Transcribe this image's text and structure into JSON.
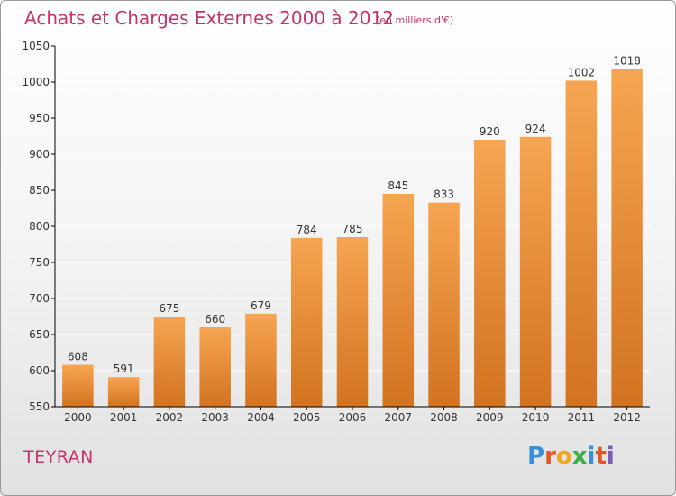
{
  "chart_data": {
    "type": "bar",
    "title": "Achats et Charges Externes 2000 à 2012",
    "subtitle": "(en milliers d'€)",
    "categories": [
      "2000",
      "2001",
      "2002",
      "2003",
      "2004",
      "2005",
      "2006",
      "2007",
      "2008",
      "2009",
      "2010",
      "2011",
      "2012"
    ],
    "values": [
      608,
      591,
      675,
      660,
      679,
      784,
      785,
      845,
      833,
      920,
      924,
      1002,
      1018
    ],
    "ylim": [
      550,
      1050
    ],
    "yticks": [
      550,
      600,
      650,
      700,
      750,
      800,
      850,
      900,
      950,
      1000,
      1050
    ],
    "grid": true,
    "bar_color_top": "#f6a552",
    "bar_color_bottom": "#d2731f"
  },
  "footer": {
    "place": "TEYRAN",
    "logo": {
      "letters": [
        {
          "ch": "P",
          "color": "#3a8fd8"
        },
        {
          "ch": "r",
          "color": "#e2562b"
        },
        {
          "ch": "o",
          "color": "#f0a81c"
        },
        {
          "ch": "x",
          "color": "#3ab04a"
        },
        {
          "ch": "i",
          "color": "#3a8fd8"
        },
        {
          "ch": "t",
          "color": "#e2562b"
        },
        {
          "ch": "i",
          "color": "#7a5bb5"
        }
      ]
    }
  }
}
